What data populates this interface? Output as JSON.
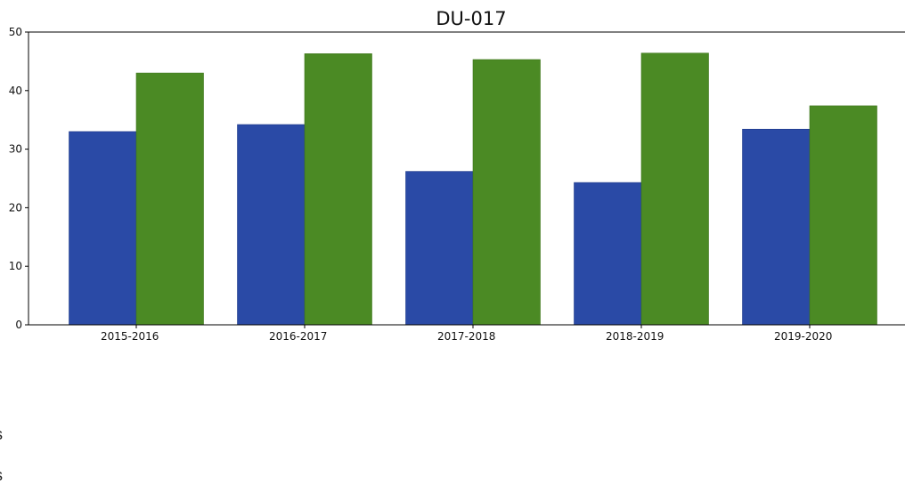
{
  "chart_data": {
    "type": "bar",
    "title": "DU-017",
    "xlabel": "",
    "ylabel": "",
    "categories": [
      "2015-2016",
      "2016-2017",
      "2017-2018",
      "2018-2019",
      "2019-2020"
    ],
    "series": [
      {
        "color": "#2a4aa6",
        "values": [
          33,
          34.2,
          26.2,
          24.3,
          33.4
        ]
      },
      {
        "color": "#4b8a24",
        "values": [
          43,
          46.3,
          45.3,
          46.4,
          37.4
        ]
      }
    ],
    "ylim": [
      0,
      50
    ],
    "yticks": [
      0,
      10,
      20,
      30,
      40,
      50
    ],
    "grid": false,
    "legend": "none"
  },
  "fragments": [
    "s",
    "s"
  ]
}
